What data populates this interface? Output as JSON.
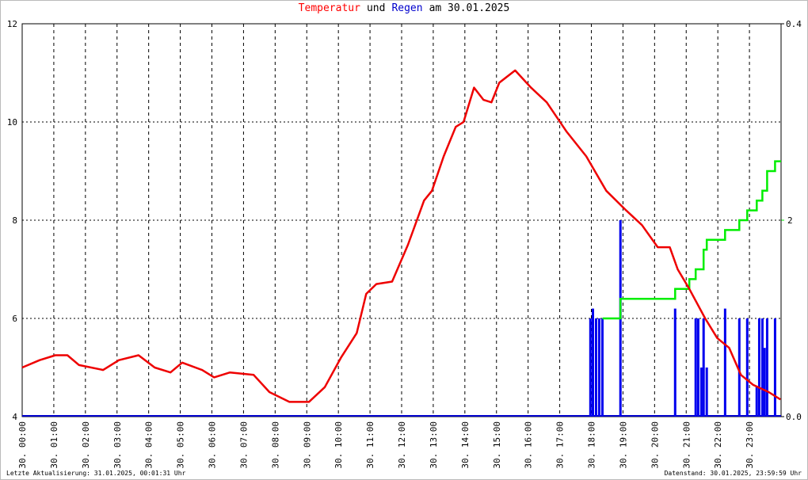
{
  "chart_data": {
    "type": "line",
    "title_parts": [
      {
        "text": "Temperatur",
        "color": "#ff0000"
      },
      {
        "text": "und",
        "color": "#000000"
      },
      {
        "text": "Regen",
        "color": "#0000cc"
      },
      {
        "text": "am 30.01.2025",
        "color": "#000000"
      }
    ],
    "xlim": [
      0,
      24
    ],
    "xticks": [
      {
        "value": 0,
        "label": "30. 00:00"
      },
      {
        "value": 1,
        "label": "30. 01:00"
      },
      {
        "value": 2,
        "label": "30. 02:00"
      },
      {
        "value": 3,
        "label": "30. 03:00"
      },
      {
        "value": 4,
        "label": "30. 04:00"
      },
      {
        "value": 5,
        "label": "30. 05:00"
      },
      {
        "value": 6,
        "label": "30. 06:00"
      },
      {
        "value": 7,
        "label": "30. 07:00"
      },
      {
        "value": 8,
        "label": "30. 08:00"
      },
      {
        "value": 9,
        "label": "30. 09:00"
      },
      {
        "value": 10,
        "label": "30. 10:00"
      },
      {
        "value": 11,
        "label": "30. 11:00"
      },
      {
        "value": 12,
        "label": "30. 12:00"
      },
      {
        "value": 13,
        "label": "30. 13:00"
      },
      {
        "value": 14,
        "label": "30. 14:00"
      },
      {
        "value": 15,
        "label": "30. 15:00"
      },
      {
        "value": 16,
        "label": "30. 16:00"
      },
      {
        "value": 17,
        "label": "30. 17:00"
      },
      {
        "value": 18,
        "label": "30. 18:00"
      },
      {
        "value": 19,
        "label": "30. 19:00"
      },
      {
        "value": 20,
        "label": "30. 20:00"
      },
      {
        "value": 21,
        "label": "30. 21:00"
      },
      {
        "value": 22,
        "label": "30. 22:00"
      },
      {
        "value": 23,
        "label": "30. 23:00"
      }
    ],
    "ylim": [
      4,
      12
    ],
    "yticks": [
      4,
      6,
      8,
      10,
      12
    ],
    "y2lim": [
      0,
      0.4
    ],
    "y2ticks": [
      {
        "value": 0,
        "label": "0.0"
      },
      {
        "value": 0.4,
        "label": "0.4"
      }
    ],
    "y3lim": [
      0,
      4
    ],
    "y3ticks": [
      2
    ],
    "y3color": "#00ee00",
    "grid": true,
    "series": [
      {
        "kind": "line",
        "axis": "y",
        "color": "#ee0000",
        "x": [
          0,
          0.55,
          1.05,
          1.43,
          1.8,
          2.56,
          3.06,
          3.68,
          4.19,
          4.69,
          5.06,
          5.69,
          6.07,
          6.57,
          7.32,
          7.82,
          8.45,
          9.07,
          9.57,
          10.08,
          10.58,
          10.88,
          11.2,
          11.7,
          12.2,
          12.71,
          12.96,
          13.33,
          13.71,
          13.96,
          14.29,
          14.59,
          14.84,
          15.09,
          15.59,
          16.09,
          16.59,
          17.22,
          17.84,
          18.47,
          19.1,
          19.6,
          20.1,
          20.48,
          20.73,
          21.1,
          21.6,
          21.98,
          22.36,
          22.73,
          23.11,
          23.61,
          23.98
        ],
        "values": [
          5.0,
          5.15,
          5.25,
          5.25,
          5.05,
          4.95,
          5.15,
          5.25,
          5.0,
          4.9,
          5.1,
          4.95,
          4.8,
          4.9,
          4.85,
          4.5,
          4.3,
          4.3,
          4.6,
          5.2,
          5.7,
          6.5,
          6.7,
          6.75,
          7.5,
          8.4,
          8.6,
          9.3,
          9.9,
          10.0,
          10.7,
          10.45,
          10.4,
          10.8,
          11.05,
          10.7,
          10.4,
          9.8,
          9.3,
          8.6,
          8.2,
          7.9,
          7.45,
          7.45,
          7.0,
          6.6,
          6.0,
          5.6,
          5.4,
          4.85,
          4.65,
          4.5,
          4.35
        ]
      },
      {
        "kind": "bar",
        "axis": "y2",
        "color": "#0000ee",
        "x": [
          17.97,
          18.05,
          18.15,
          18.25,
          18.35,
          18.92,
          20.65,
          21.3,
          21.38,
          21.48,
          21.55,
          21.65,
          22.23,
          22.68,
          22.93,
          23.23,
          23.31,
          23.41,
          23.48,
          23.56,
          23.81
        ],
        "values": [
          0.1,
          0.11,
          0.1,
          0.1,
          0.1,
          0.2,
          0.11,
          0.1,
          0.1,
          0.05,
          0.1,
          0.05,
          0.11,
          0.1,
          0.1,
          0.03,
          0.1,
          0.1,
          0.07,
          0.1,
          0.1
        ]
      },
      {
        "kind": "step",
        "axis": "y3",
        "color": "#00ee00",
        "x": [
          18.35,
          18.92,
          20.65,
          21.1,
          21.3,
          21.55,
          21.65,
          22.23,
          22.68,
          22.93,
          23.23,
          23.41,
          23.56,
          23.81,
          24.0
        ],
        "values": [
          1.0,
          1.2,
          1.3,
          1.4,
          1.5,
          1.7,
          1.8,
          1.9,
          2.0,
          2.1,
          2.2,
          2.3,
          2.5,
          2.6,
          2.6
        ]
      }
    ],
    "footer_left": "Letzte Aktualisierung: 31.01.2025, 00:01:31 Uhr",
    "footer_right": "Datenstand: 30.01.2025, 23:59:59 Uhr"
  }
}
